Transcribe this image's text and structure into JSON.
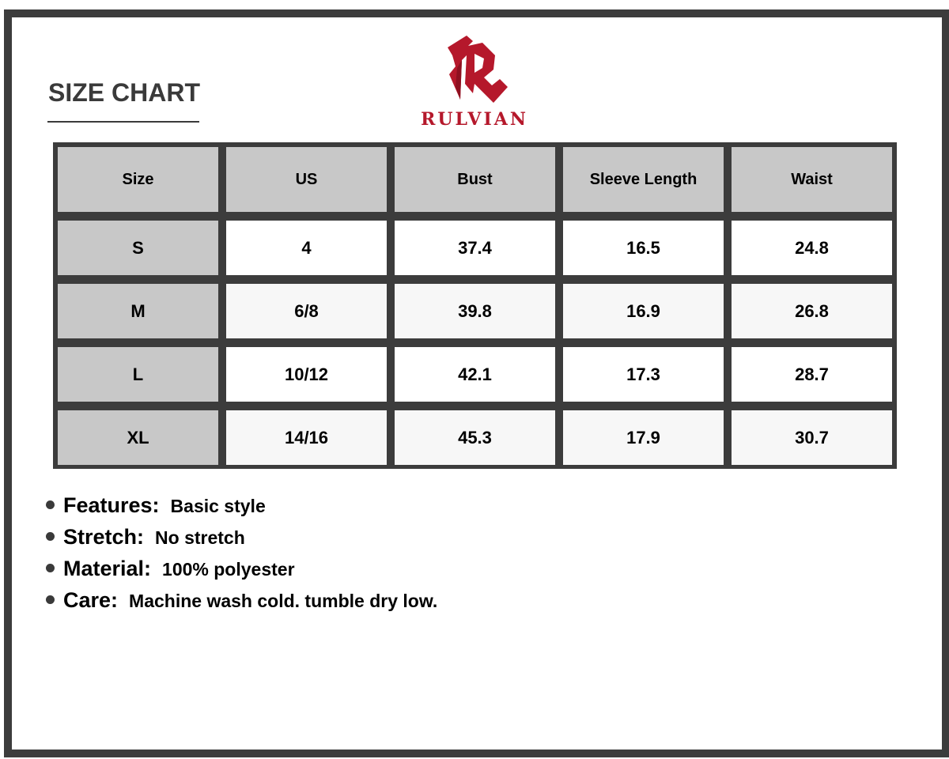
{
  "title": "SIZE CHART",
  "brand": {
    "name": "RULVIAN",
    "color": "#b5182b"
  },
  "table": {
    "headers": [
      "Size",
      "US",
      "Bust",
      "Sleeve Length",
      "Waist"
    ],
    "rows": [
      [
        "S",
        "4",
        "37.4",
        "16.5",
        "24.8"
      ],
      [
        "M",
        "6/8",
        "39.8",
        "16.9",
        "26.8"
      ],
      [
        "L",
        "10/12",
        "42.1",
        "17.3",
        "28.7"
      ],
      [
        "XL",
        "14/16",
        "45.3",
        "17.9",
        "30.7"
      ]
    ]
  },
  "specs": [
    {
      "label": "Features:",
      "value": "Basic style"
    },
    {
      "label": "Stretch:",
      "value": "No stretch"
    },
    {
      "label": "Material:",
      "value": "100% polyester"
    },
    {
      "label": "Care:",
      "value": "Machine wash cold. tumble dry low."
    }
  ]
}
